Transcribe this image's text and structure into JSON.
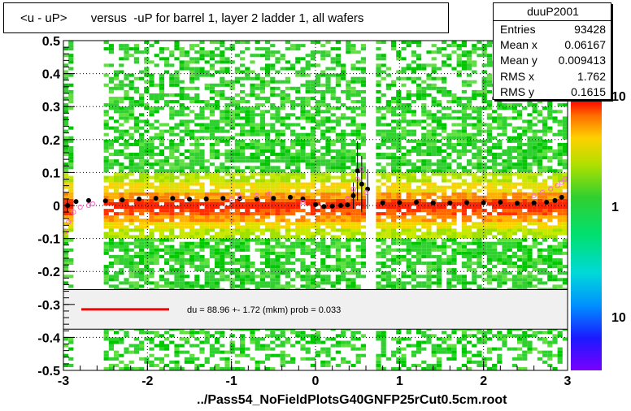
{
  "chart_data": {
    "type": "heatmap",
    "title": "<u - uP>       versus  -uP for barrel 1, layer 2 ladder 1, all wafers",
    "xlim": [
      -3,
      3
    ],
    "ylim": [
      -0.5,
      0.5
    ],
    "x_ticks": [
      "-3",
      "-2",
      "-1",
      "0",
      "1",
      "2",
      "3"
    ],
    "y_ticks": [
      "-0.5",
      "-0.4",
      "-0.3",
      "-0.2",
      "-0.1",
      "0",
      "0.1",
      "0.2",
      "0.3",
      "0.4",
      "0.5"
    ],
    "x_tick_values": [
      -3,
      -2,
      -1,
      0,
      1,
      2,
      3
    ],
    "y_tick_values": [
      -0.5,
      -0.4,
      -0.3,
      -0.2,
      -0.1,
      0,
      0.1,
      0.2,
      0.3,
      0.4,
      0.5
    ],
    "grid": true,
    "colorbar_labels": [
      "10",
      "1",
      "10"
    ],
    "gaps_x": [
      [
        -2.85,
        -2.55
      ],
      [
        0.58,
        0.75
      ]
    ],
    "profile_points": {
      "x": [
        -2.95,
        -2.85,
        -2.7,
        -2.5,
        -2.3,
        -2.1,
        -1.9,
        -1.7,
        -1.5,
        -1.3,
        -1.1,
        -0.9,
        -0.7,
        -0.5,
        -0.3,
        -0.15,
        0.0,
        0.1,
        0.2,
        0.3,
        0.38,
        0.45,
        0.5,
        0.55,
        0.62,
        0.8,
        1.0,
        1.2,
        1.4,
        1.6,
        1.8,
        2.0,
        2.2,
        2.4,
        2.6,
        2.75,
        2.85,
        2.93
      ],
      "y": [
        0.0,
        0.012,
        0.015,
        0.014,
        0.017,
        0.02,
        0.022,
        0.022,
        0.019,
        0.02,
        0.022,
        0.021,
        0.02,
        0.022,
        0.025,
        0.02,
        0.003,
        -0.003,
        -0.002,
        0.0,
        0.002,
        0.03,
        0.105,
        0.065,
        0.05,
        0.008,
        0.009,
        0.01,
        0.008,
        0.008,
        0.009,
        0.008,
        0.01,
        0.007,
        0.008,
        0.01,
        0.015,
        0.025
      ],
      "err": [
        0.02,
        0.006,
        0.004,
        0.004,
        0.004,
        0.004,
        0.004,
        0.004,
        0.004,
        0.004,
        0.004,
        0.004,
        0.004,
        0.004,
        0.004,
        0.004,
        0.004,
        0.004,
        0.004,
        0.004,
        0.004,
        0.04,
        0.09,
        0.085,
        0.06,
        0.004,
        0.004,
        0.004,
        0.004,
        0.004,
        0.004,
        0.004,
        0.004,
        0.004,
        0.004,
        0.004,
        0.005,
        0.006
      ]
    },
    "open_points": {
      "x": [
        -2.98,
        -2.94,
        -2.88,
        -2.8,
        -2.7,
        -2.65,
        -1.0,
        -0.9,
        -0.7,
        -0.55,
        -0.15,
        0.38,
        0.45,
        0.5,
        0.55,
        0.6,
        2.6,
        2.7,
        2.8,
        2.88,
        2.93,
        2.97
      ],
      "y": [
        -0.08,
        -0.05,
        -0.02,
        -0.005,
        0.0,
        0.005,
        0.02,
        0.025,
        0.03,
        0.035,
        0.01,
        0.02,
        0.05,
        0.08,
        0.11,
        0.04,
        0.03,
        0.04,
        0.05,
        0.06,
        0.07,
        0.08
      ]
    },
    "fit": {
      "label": "du =   88.96 +-  1.72 (mkm) prob = 0.033",
      "line_color": "#ff0000"
    }
  },
  "stats": {
    "name": "duuP2001",
    "rows": [
      {
        "key": "Entries",
        "value": "93428"
      },
      {
        "key": "Mean x",
        "value": "0.06167"
      },
      {
        "key": "Mean y",
        "value": "0.009413"
      },
      {
        "key": "RMS x",
        "value": "1.762"
      },
      {
        "key": "RMS y",
        "value": "0.1615"
      }
    ]
  },
  "footer": "../Pass54_NoFieldPlotsG40GNFP25rCut0.5cm.root"
}
